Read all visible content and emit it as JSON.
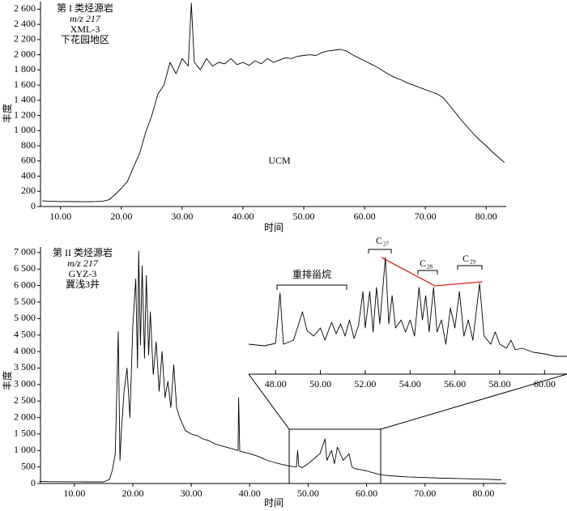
{
  "chart_data": [
    {
      "type": "line",
      "annotations": [
        "第 I 类烃源岩",
        "m/z 217",
        "XML-3",
        "下花园地区",
        "UCM"
      ],
      "ylabel": "丰度",
      "xlabel": "时间",
      "xlim": [
        6.7,
        83.3
      ],
      "ylim": [
        0,
        2700
      ],
      "xticks": [
        {
          "value": 10,
          "label": "10.00"
        },
        {
          "value": 20,
          "label": "20.00"
        },
        {
          "value": 30,
          "label": "30.00"
        },
        {
          "value": 40,
          "label": "40.00"
        },
        {
          "value": 50,
          "label": "50.00"
        },
        {
          "value": 60,
          "label": "60.00"
        },
        {
          "value": 70,
          "label": "70.00"
        },
        {
          "value": 80,
          "label": "80.00"
        }
      ],
      "yticks": [
        0,
        200,
        400,
        600,
        800,
        {
          "value": 1000,
          "label": "1 000"
        },
        {
          "value": 1200,
          "label": "1 200"
        },
        {
          "value": 1400,
          "label": "1 400"
        },
        {
          "value": 1600,
          "label": "1 600"
        },
        {
          "value": 1800,
          "label": "1 800"
        },
        {
          "value": 2000,
          "label": "2 000"
        },
        {
          "value": 2200,
          "label": "2 200"
        },
        {
          "value": 2400,
          "label": "2 400"
        },
        {
          "value": 2600,
          "label": "2 600"
        }
      ],
      "color": "#000000",
      "x": [
        7,
        8,
        9,
        10,
        11,
        12,
        13,
        14,
        15,
        16,
        17,
        18,
        19,
        20,
        21,
        22,
        23,
        24,
        25,
        26,
        27,
        28,
        29,
        30,
        31,
        31.5,
        32,
        33,
        34,
        35,
        36,
        37,
        38,
        39,
        40,
        41,
        42,
        43,
        44,
        45,
        46,
        47,
        48,
        49,
        50,
        51,
        52,
        53,
        54,
        55,
        56,
        57,
        58,
        59,
        60,
        61,
        62,
        63,
        64,
        65,
        66,
        67,
        68,
        69,
        70,
        71,
        72,
        73,
        74,
        75,
        76,
        77,
        78,
        79,
        80,
        81,
        82,
        83
      ],
      "values": [
        75,
        70,
        68,
        65,
        66,
        64,
        65,
        63,
        64,
        66,
        70,
        90,
        160,
        240,
        330,
        520,
        700,
        980,
        1200,
        1480,
        1600,
        1900,
        1750,
        1950,
        1850,
        2680,
        1900,
        1800,
        1950,
        1850,
        1900,
        1880,
        1950,
        1870,
        1900,
        1860,
        1920,
        1880,
        1950,
        1900,
        1930,
        1960,
        1950,
        1980,
        1990,
        2000,
        1990,
        2030,
        2050,
        2060,
        2070,
        2050,
        2000,
        1960,
        1920,
        1880,
        1840,
        1790,
        1740,
        1700,
        1670,
        1630,
        1600,
        1570,
        1540,
        1510,
        1480,
        1430,
        1330,
        1230,
        1130,
        1040,
        950,
        870,
        800,
        720,
        650,
        580
      ]
    },
    {
      "type": "line",
      "annotations": [
        "第 II 类烃源岩",
        "m/z 217",
        "GYZ-3",
        "冀浅3井"
      ],
      "ylabel": "丰度",
      "xlabel": "时间",
      "xlim": [
        4.2,
        83.9
      ],
      "ylim": [
        0,
        7170
      ],
      "xticks": [
        {
          "value": 10,
          "label": "10.00"
        },
        {
          "value": 20,
          "label": "20.00"
        },
        {
          "value": 30,
          "label": "30.00"
        },
        {
          "value": 40,
          "label": "40.00"
        },
        {
          "value": 50,
          "label": "50.00"
        },
        {
          "value": 60,
          "label": "60.00"
        },
        {
          "value": 70,
          "label": "70.00"
        },
        {
          "value": 80,
          "label": "80.00"
        }
      ],
      "yticks": [
        0,
        500,
        {
          "value": 1000,
          "label": "1 000"
        },
        {
          "value": 1500,
          "label": "1 500"
        },
        {
          "value": 2000,
          "label": "2 000"
        },
        {
          "value": 2500,
          "label": "2 500"
        },
        {
          "value": 3000,
          "label": "3 000"
        },
        {
          "value": 3500,
          "label": "3 500"
        },
        {
          "value": 4000,
          "label": "4 000"
        },
        {
          "value": 4500,
          "label": "4 500"
        },
        {
          "value": 5000,
          "label": "5 000"
        },
        {
          "value": 5500,
          "label": "5 500"
        },
        {
          "value": 6000,
          "label": "6 000"
        },
        {
          "value": 6500,
          "label": "6 500"
        },
        {
          "value": 7000,
          "label": "7 000"
        }
      ],
      "color": "#000000",
      "x": [
        4,
        5,
        6,
        7,
        8,
        9,
        10,
        11,
        12,
        13,
        14,
        15,
        16,
        16.5,
        17,
        17.5,
        17.8,
        18,
        18.5,
        19,
        19.5,
        20,
        20.5,
        20.8,
        21,
        21.3,
        21.6,
        22,
        22.3,
        22.7,
        23,
        23.5,
        24,
        24.5,
        25,
        25.5,
        26,
        26.5,
        27,
        27.5,
        28,
        29,
        30,
        31,
        32,
        33,
        34,
        35,
        36,
        37,
        38,
        38.1,
        38.3,
        39,
        40,
        41,
        42,
        43,
        44,
        45,
        46,
        47,
        48,
        48.2,
        48.4,
        49,
        50,
        51,
        52,
        52.9,
        53.2,
        54,
        54.5,
        55,
        56,
        57,
        57.5,
        58,
        59,
        60,
        61,
        62,
        63,
        65,
        67,
        70,
        73,
        76,
        80,
        83
      ],
      "values": [
        60,
        58,
        55,
        54,
        53,
        52,
        52,
        51,
        50,
        50,
        50,
        50,
        120,
        400,
        900,
        4600,
        700,
        1500,
        2800,
        3500,
        2000,
        4800,
        6200,
        3500,
        7050,
        4200,
        6600,
        3800,
        6300,
        3900,
        5200,
        3300,
        4300,
        2800,
        4000,
        2600,
        3100,
        2300,
        3600,
        2300,
        2000,
        1600,
        1500,
        1450,
        1350,
        1300,
        1200,
        1150,
        1100,
        1050,
        1000,
        2600,
        980,
        950,
        900,
        850,
        780,
        700,
        650,
        600,
        560,
        520,
        500,
        1000,
        520,
        480,
        600,
        750,
        900,
        1350,
        700,
        1000,
        600,
        1100,
        700,
        900,
        500,
        450,
        420,
        380,
        330,
        280,
        250,
        220,
        200,
        180,
        160,
        150,
        130,
        110
      ]
    },
    {
      "type": "line",
      "annotations": [
        "重排甾烷"
      ],
      "peaks": [
        {
          "base": "C",
          "sub": "27"
        },
        {
          "base": "C",
          "sub": "28"
        },
        {
          "base": "C",
          "sub": "29"
        }
      ],
      "xlim": [
        46.8,
        61.0
      ],
      "ylim": [
        300,
        1400
      ],
      "xticks": [
        {
          "value": 48,
          "label": "48.00"
        },
        {
          "value": 50,
          "label": "50.00"
        },
        {
          "value": 52,
          "label": "52.00"
        },
        {
          "value": 54,
          "label": "54.00"
        },
        {
          "value": 56,
          "label": "56.00"
        },
        {
          "value": 58,
          "label": "58.00"
        },
        {
          "value": 60,
          "label": "60.00"
        }
      ],
      "color": "#000000",
      "x": [
        46.8,
        47.5,
        48.0,
        48.2,
        48.35,
        48.8,
        49.2,
        49.4,
        49.7,
        50.0,
        50.2,
        50.5,
        50.7,
        50.9,
        51.1,
        51.3,
        51.5,
        51.7,
        51.9,
        52.0,
        52.2,
        52.35,
        52.5,
        52.65,
        52.9,
        53.05,
        53.2,
        53.35,
        53.6,
        53.8,
        54.0,
        54.2,
        54.4,
        54.55,
        54.7,
        54.85,
        55.05,
        55.2,
        55.4,
        55.6,
        55.8,
        56.0,
        56.2,
        56.4,
        56.6,
        56.8,
        57.1,
        57.3,
        57.6,
        57.8,
        58.0,
        58.3,
        58.5,
        58.7,
        59.0,
        59.5,
        60.0,
        60.5,
        61.0
      ],
      "values": [
        557,
        542,
        564,
        1018,
        557,
        593,
        850,
        681,
        630,
        703,
        593,
        754,
        652,
        740,
        630,
        776,
        608,
        725,
        1033,
        703,
        1033,
        667,
        1070,
        740,
        1341,
        740,
        996,
        703,
        776,
        667,
        776,
        630,
        1070,
        776,
        996,
        667,
        1070,
        667,
        776,
        557,
        886,
        703,
        1033,
        630,
        776,
        593,
        1106,
        630,
        557,
        667,
        557,
        520,
        593,
        505,
        520,
        483,
        469,
        447,
        447
      ]
    }
  ]
}
